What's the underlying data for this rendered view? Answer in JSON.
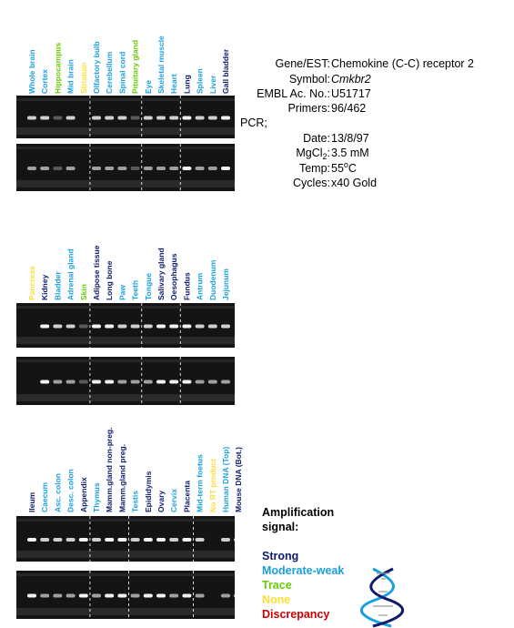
{
  "panels": [
    {
      "lanes": [
        {
          "label": "Whole brain",
          "color": "#1aa0e0"
        },
        {
          "label": "Cortex",
          "color": "#1aa0e0"
        },
        {
          "label": "Hippocampus",
          "color": "#66cc00"
        },
        {
          "label": "Mid brain",
          "color": "#1aa0e0"
        },
        {
          "label": "Striatum",
          "color": "#ffdd33"
        },
        {
          "label": "Olfactory bulb",
          "color": "#1aa0e0"
        },
        {
          "label": "Cerebellum",
          "color": "#1aa0e0"
        },
        {
          "label": "Spinal cord",
          "color": "#1aa0e0"
        },
        {
          "label": "Pituitary gland",
          "color": "#66cc00"
        },
        {
          "label": "Eye",
          "color": "#1aa0e0"
        },
        {
          "label": "Skeletal muscle",
          "color": "#1aa0e0"
        },
        {
          "label": "Heart",
          "color": "#1aa0e0"
        },
        {
          "label": "Lung",
          "color": "#0a1a6e"
        },
        {
          "label": "Spleen",
          "color": "#1aa0e0"
        },
        {
          "label": "Liver",
          "color": "#1aa0e0"
        },
        {
          "label": "Gall bladder",
          "color": "#0a1a6e"
        }
      ]
    },
    {
      "lanes": [
        {
          "label": "Pancreas",
          "color": "#ffdd33"
        },
        {
          "label": "Kidney",
          "color": "#0a1a6e"
        },
        {
          "label": "Bladder",
          "color": "#1aa0e0"
        },
        {
          "label": "Adrenal gland",
          "color": "#1aa0e0"
        },
        {
          "label": "Skin",
          "color": "#66cc00"
        },
        {
          "label": "Adipose tissue",
          "color": "#0a1a6e"
        },
        {
          "label": "Long bone",
          "color": "#0a1a6e"
        },
        {
          "label": "Paw",
          "color": "#1aa0e0"
        },
        {
          "label": "Teeth",
          "color": "#1aa0e0"
        },
        {
          "label": "Tongue",
          "color": "#1aa0e0"
        },
        {
          "label": "Salivary gland",
          "color": "#0a1a6e"
        },
        {
          "label": "Oesophagus",
          "color": "#0a1a6e"
        },
        {
          "label": "Fundus",
          "color": "#0a1a6e"
        },
        {
          "label": "Antrum",
          "color": "#1aa0e0"
        },
        {
          "label": "Duodenum",
          "color": "#1aa0e0"
        },
        {
          "label": "Jejunum",
          "color": "#1aa0e0"
        }
      ]
    },
    {
      "lanes": [
        {
          "label": "Ileum",
          "color": "#0a1a6e"
        },
        {
          "label": "Caecum",
          "color": "#1aa0e0"
        },
        {
          "label": "Asc. colon",
          "color": "#1aa0e0"
        },
        {
          "label": "Desc. colon",
          "color": "#1aa0e0"
        },
        {
          "label": "Appendix",
          "color": "#0a1a6e"
        },
        {
          "label": "Thymus",
          "color": "#1aa0e0"
        },
        {
          "label": "Mamm.gland non-preg.",
          "color": "#0a1a6e"
        },
        {
          "label": "Mamm.gland preg.",
          "color": "#0a1a6e"
        },
        {
          "label": "Testis",
          "color": "#1aa0e0"
        },
        {
          "label": "Epididymis",
          "color": "#0a1a6e"
        },
        {
          "label": "Ovary",
          "color": "#0a1a6e"
        },
        {
          "label": "Cervix",
          "color": "#1aa0e0"
        },
        {
          "label": "Placenta",
          "color": "#0a1a6e"
        },
        {
          "label": "Mid-term foetus",
          "color": "#1aa0e0"
        },
        {
          "label": "No RT product",
          "color": "#ffdd33"
        },
        {
          "label": "Human DNA (Top)",
          "color": "#1aa0e0"
        },
        {
          "label": "Mouse DNA (Bot.)",
          "color": "#0a1a6e"
        }
      ]
    }
  ],
  "info": {
    "gene_key": "Gene/EST:",
    "gene": "Chemokine (C-C) receptor 2",
    "symbol_key": "Symbol:",
    "symbol": "Cmkbr2",
    "embl_key": "EMBL Ac. No.:",
    "embl": "U51717",
    "primers_key": "Primers:",
    "primers": "96/462",
    "pcr": "PCR;",
    "date_key": "Date:",
    "date": "13/8/97",
    "mgcl_key": "MgCl",
    "mgcl_sub": "2",
    "mgcl_colon": ":",
    "mgcl": "3.5 mM",
    "temp_key": "Temp:",
    "temp": "55",
    "temp_sup": "o",
    "temp_unit": "C",
    "cycles_key": "Cycles:",
    "cycles": "x40 Gold"
  },
  "legend": {
    "title_lines": [
      "Amplification",
      "signal:"
    ],
    "items": [
      {
        "label": "Strong",
        "color": "#0a1a6e"
      },
      {
        "label": "Moderate-weak",
        "color": "#1aa0e0"
      },
      {
        "label": "Trace",
        "color": "#66cc00"
      },
      {
        "label": "None",
        "color": "#ffdd33"
      },
      {
        "label": "Discrepancy",
        "color": "#cc0000"
      }
    ]
  }
}
